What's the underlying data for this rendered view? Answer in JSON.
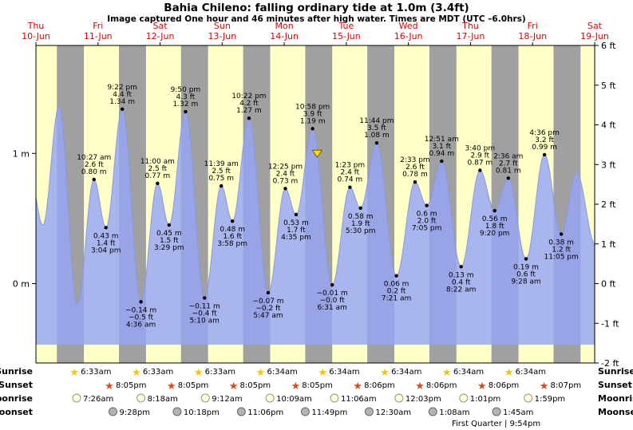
{
  "header": {
    "title": "Bahia Chileno: falling ordinary tide at 1.0m (3.4ft)",
    "subtitle": "Image captured One hour and 46 minutes after high water. Times are MDT (UTC –6.0hrs)"
  },
  "chart_data": {
    "type": "area",
    "title": "Bahia Chileno tide curve",
    "x_axis": {
      "days": [
        {
          "name": "Thu",
          "date": "10-Jun"
        },
        {
          "name": "Fri",
          "date": "11-Jun"
        },
        {
          "name": "Sat",
          "date": "12-Jun"
        },
        {
          "name": "Sun",
          "date": "13-Jun"
        },
        {
          "name": "Mon",
          "date": "14-Jun"
        },
        {
          "name": "Tue",
          "date": "15-Jun"
        },
        {
          "name": "Wed",
          "date": "16-Jun"
        },
        {
          "name": "Thu",
          "date": "17-Jun"
        },
        {
          "name": "Fri",
          "date": "18-Jun"
        },
        {
          "name": "Sat",
          "date": "19-Jun"
        }
      ]
    },
    "y_axis_left": {
      "labels": [
        "1 m",
        "0 m"
      ],
      "values_m": [
        1,
        0
      ]
    },
    "y_axis_right": {
      "labels": [
        "6 ft",
        "5 ft",
        "4 ft",
        "3 ft",
        "2 ft",
        "1 ft",
        "0 ft",
        "-1 ft",
        "-2 ft"
      ],
      "values_ft": [
        6,
        5,
        4,
        3,
        2,
        1,
        0,
        -1,
        -2
      ]
    },
    "ylim_ft": [
      -2,
      6
    ],
    "daylight": {
      "sunrise_hour": 6.55,
      "sunset_hour": 20.09
    },
    "marker": {
      "day": 5,
      "hour": 0.73,
      "height_m": 1.0
    },
    "colors": {
      "day_band": "#ffffc8",
      "night_band": "#a0a0a0",
      "tide_fill": "rgba(150,165,245,0.82)",
      "tide_stroke": "#8898e0",
      "label_red": "#dd0000",
      "marker_yellow": "#ffd900",
      "marker_edge": "#7a5c00",
      "sunrise_star": "#f2c40c",
      "sunset_star": "#e04818",
      "moonrise_fill": "#ffffe6",
      "moonrise_stroke": "#999966",
      "moonset_fill": "#b3b3b3",
      "moonset_stroke": "#666666"
    },
    "tide_events": [
      {
        "day": 0,
        "hour": 10.0,
        "height_m": 0.8,
        "type": "high",
        "labeled": false
      },
      {
        "day": 0,
        "hour": 14.67,
        "height_m": 0.45,
        "type": "low",
        "labeled": false
      },
      {
        "day": 0,
        "hour": 20.92,
        "height_m": 1.36,
        "type": "high",
        "labeled": false
      },
      {
        "day": 1,
        "hour": 4.0,
        "height_m": -0.16,
        "type": "low",
        "labeled": false
      },
      {
        "day": 1,
        "hour": 10.45,
        "height_m": 0.8,
        "type": "high",
        "labeled": true,
        "time_label": "10:27 am",
        "ft_label": "2.6 ft",
        "m_label": "0.80 m"
      },
      {
        "day": 1,
        "hour": 15.07,
        "height_m": 0.43,
        "type": "low",
        "labeled": true,
        "time_label": "3:04 pm",
        "ft_label": "1.4 ft",
        "m_label": "0.43 m"
      },
      {
        "day": 1,
        "hour": 21.37,
        "height_m": 1.34,
        "type": "high",
        "labeled": true,
        "time_label": "9:22 pm",
        "ft_label": "4.4 ft",
        "m_label": "1.34 m"
      },
      {
        "day": 2,
        "hour": 4.6,
        "height_m": -0.14,
        "type": "low",
        "labeled": true,
        "time_label": "4:36 am",
        "ft_label": "−0.5 ft",
        "m_label": "−0.14 m"
      },
      {
        "day": 2,
        "hour": 11.0,
        "height_m": 0.77,
        "type": "high",
        "labeled": true,
        "time_label": "11:00 am",
        "ft_label": "2.5 ft",
        "m_label": "0.77 m"
      },
      {
        "day": 2,
        "hour": 15.48,
        "height_m": 0.45,
        "type": "low",
        "labeled": true,
        "time_label": "3:29 pm",
        "ft_label": "1.5 ft",
        "m_label": "0.45 m"
      },
      {
        "day": 2,
        "hour": 21.83,
        "height_m": 1.32,
        "type": "high",
        "labeled": true,
        "time_label": "9:50 pm",
        "ft_label": "4.3 ft",
        "m_label": "1.32 m"
      },
      {
        "day": 3,
        "hour": 5.17,
        "height_m": -0.11,
        "type": "low",
        "labeled": true,
        "time_label": "5:10 am",
        "ft_label": "−0.4 ft",
        "m_label": "−0.11 m"
      },
      {
        "day": 3,
        "hour": 11.65,
        "height_m": 0.75,
        "type": "high",
        "labeled": true,
        "time_label": "11:39 am",
        "ft_label": "2.5 ft",
        "m_label": "0.75 m"
      },
      {
        "day": 3,
        "hour": 15.97,
        "height_m": 0.48,
        "type": "low",
        "labeled": true,
        "time_label": "3:58 pm",
        "ft_label": "1.6 ft",
        "m_label": "0.48 m"
      },
      {
        "day": 3,
        "hour": 22.37,
        "height_m": 1.27,
        "type": "high",
        "labeled": true,
        "time_label": "10:22 pm",
        "ft_label": "4.2 ft",
        "m_label": "1.27 m"
      },
      {
        "day": 4,
        "hour": 5.78,
        "height_m": -0.07,
        "type": "low",
        "labeled": true,
        "time_label": "5:47 am",
        "ft_label": "−0.2 ft",
        "m_label": "−0.07 m"
      },
      {
        "day": 4,
        "hour": 12.42,
        "height_m": 0.73,
        "type": "high",
        "labeled": true,
        "time_label": "12:25 pm",
        "ft_label": "2.4 ft",
        "m_label": "0.73 m"
      },
      {
        "day": 4,
        "hour": 16.58,
        "height_m": 0.53,
        "type": "low",
        "labeled": true,
        "time_label": "4:35 pm",
        "ft_label": "1.7 ft",
        "m_label": "0.53 m"
      },
      {
        "day": 4,
        "hour": 22.97,
        "height_m": 1.19,
        "type": "high",
        "labeled": true,
        "time_label": "10:58 pm",
        "ft_label": "3.9 ft",
        "m_label": "1.19 m"
      },
      {
        "day": 5,
        "hour": 6.52,
        "height_m": -0.01,
        "type": "low",
        "labeled": true,
        "time_label": "6:31 am",
        "ft_label": "−0.0 ft",
        "m_label": "−0.01 m"
      },
      {
        "day": 5,
        "hour": 13.38,
        "height_m": 0.74,
        "type": "high",
        "labeled": true,
        "time_label": "1:23 pm",
        "ft_label": "2.4 ft",
        "m_label": "0.74 m"
      },
      {
        "day": 5,
        "hour": 17.5,
        "height_m": 0.58,
        "type": "low",
        "labeled": true,
        "time_label": "5:30 pm",
        "ft_label": "1.9 ft",
        "m_label": "0.58 m"
      },
      {
        "day": 5,
        "hour": 23.73,
        "height_m": 1.08,
        "type": "high",
        "labeled": true,
        "time_label": "11:44 pm",
        "ft_label": "3.5 ft",
        "m_label": "1.08 m"
      },
      {
        "day": 6,
        "hour": 7.35,
        "height_m": 0.06,
        "type": "low",
        "labeled": true,
        "time_label": "7:21 am",
        "ft_label": "0.2 ft",
        "m_label": "0.06 m"
      },
      {
        "day": 6,
        "hour": 14.55,
        "height_m": 0.78,
        "type": "high",
        "labeled": true,
        "time_label": "2:33 pm",
        "ft_label": "2.6 ft",
        "m_label": "0.78 m"
      },
      {
        "day": 6,
        "hour": 19.08,
        "height_m": 0.6,
        "type": "low",
        "labeled": true,
        "time_label": "7:05 pm",
        "ft_label": "2.0 ft",
        "m_label": "0.6 m"
      },
      {
        "day": 7,
        "hour": 0.85,
        "height_m": 0.94,
        "type": "high",
        "labeled": true,
        "time_label": "12:51 am",
        "ft_label": "3.1 ft",
        "m_label": "0.94 m"
      },
      {
        "day": 7,
        "hour": 8.37,
        "height_m": 0.13,
        "type": "low",
        "labeled": true,
        "time_label": "8:22 am",
        "ft_label": "0.4 ft",
        "m_label": "0.13 m"
      },
      {
        "day": 7,
        "hour": 15.67,
        "height_m": 0.87,
        "type": "high",
        "labeled": true,
        "time_label": "3:40 pm",
        "ft_label": "2.9 ft",
        "m_label": "0.87 m"
      },
      {
        "day": 7,
        "hour": 21.33,
        "height_m": 0.56,
        "type": "low",
        "labeled": true,
        "time_label": "9:20 pm",
        "ft_label": "1.8 ft",
        "m_label": "0.56 m"
      },
      {
        "day": 8,
        "hour": 2.6,
        "height_m": 0.81,
        "type": "high",
        "labeled": true,
        "time_label": "2:36 am",
        "ft_label": "2.7 ft",
        "m_label": "0.81 m"
      },
      {
        "day": 8,
        "hour": 9.47,
        "height_m": 0.19,
        "type": "low",
        "labeled": true,
        "time_label": "9:28 am",
        "ft_label": "0.6 ft",
        "m_label": "0.19 m"
      },
      {
        "day": 8,
        "hour": 16.6,
        "height_m": 0.99,
        "type": "high",
        "labeled": true,
        "time_label": "4:36 pm",
        "ft_label": "3.2 ft",
        "m_label": "0.99 m"
      },
      {
        "day": 8,
        "hour": 23.08,
        "height_m": 0.38,
        "type": "low",
        "labeled": true,
        "time_label": "11:05 pm",
        "ft_label": "1.2 ft",
        "m_label": "0.38 m"
      },
      {
        "day": 9,
        "hour": 5.0,
        "height_m": 0.85,
        "type": "high",
        "labeled": false
      },
      {
        "day": 9,
        "hour": 12.3,
        "height_m": 0.3,
        "type": "low",
        "labeled": false
      }
    ]
  },
  "astro": {
    "rows": [
      {
        "name": "Sunrise",
        "icon": "star",
        "icon_name": "sunrise-star-icon",
        "color_key": "sunrise_star",
        "events": [
          {
            "day": 1,
            "hour": 6.55,
            "label": "6:33am"
          },
          {
            "day": 2,
            "hour": 6.55,
            "label": "6:33am"
          },
          {
            "day": 3,
            "hour": 6.55,
            "label": "6:33am"
          },
          {
            "day": 4,
            "hour": 6.57,
            "label": "6:34am"
          },
          {
            "day": 5,
            "hour": 6.57,
            "label": "6:34am"
          },
          {
            "day": 6,
            "hour": 6.57,
            "label": "6:34am"
          },
          {
            "day": 7,
            "hour": 6.57,
            "label": "6:34am"
          },
          {
            "day": 8,
            "hour": 6.57,
            "label": "6:34am"
          }
        ]
      },
      {
        "name": "Sunset",
        "icon": "star",
        "icon_name": "sunset-star-icon",
        "color_key": "sunset_star",
        "events": [
          {
            "day": 1,
            "hour": 20.08,
            "label": "8:05pm"
          },
          {
            "day": 2,
            "hour": 20.08,
            "label": "8:05pm"
          },
          {
            "day": 3,
            "hour": 20.08,
            "label": "8:05pm"
          },
          {
            "day": 4,
            "hour": 20.08,
            "label": "8:05pm"
          },
          {
            "day": 5,
            "hour": 20.1,
            "label": "8:06pm"
          },
          {
            "day": 6,
            "hour": 20.1,
            "label": "8:06pm"
          },
          {
            "day": 7,
            "hour": 20.1,
            "label": "8:06pm"
          },
          {
            "day": 8,
            "hour": 20.12,
            "label": "8:07pm"
          }
        ]
      },
      {
        "name": "Moonrise",
        "icon": "circle",
        "icon_name": "moonrise-icon",
        "fill_key": "moonrise_fill",
        "stroke_key": "moonrise_stroke",
        "events": [
          {
            "day": 1,
            "hour": 7.43,
            "label": "7:26am"
          },
          {
            "day": 2,
            "hour": 8.3,
            "label": "8:18am"
          },
          {
            "day": 3,
            "hour": 9.2,
            "label": "9:12am"
          },
          {
            "day": 4,
            "hour": 10.15,
            "label": "10:09am"
          },
          {
            "day": 5,
            "hour": 11.1,
            "label": "11:06am"
          },
          {
            "day": 6,
            "hour": 12.05,
            "label": "12:03pm"
          },
          {
            "day": 7,
            "hour": 13.02,
            "label": "1:01pm"
          },
          {
            "day": 8,
            "hour": 13.98,
            "label": "1:59pm"
          }
        ]
      },
      {
        "name": "Moonset",
        "icon": "circle",
        "icon_name": "moonset-icon",
        "fill_key": "moonset_fill",
        "stroke_key": "moonset_stroke",
        "events": [
          {
            "day": 1,
            "hour": 21.47,
            "label": "9:28pm"
          },
          {
            "day": 2,
            "hour": 22.3,
            "label": "10:18pm"
          },
          {
            "day": 3,
            "hour": 23.1,
            "label": "11:06pm"
          },
          {
            "day": 4,
            "hour": 23.82,
            "label": "11:49pm"
          },
          {
            "day": 6,
            "hour": 0.5,
            "label": "12:30am"
          },
          {
            "day": 7,
            "hour": 1.13,
            "label": "1:08am"
          },
          {
            "day": 8,
            "hour": 1.75,
            "label": "1:45am"
          }
        ]
      }
    ],
    "footnote": {
      "label": "First Quarter | 9:54pm",
      "day": 7,
      "hour": 21.9
    }
  }
}
